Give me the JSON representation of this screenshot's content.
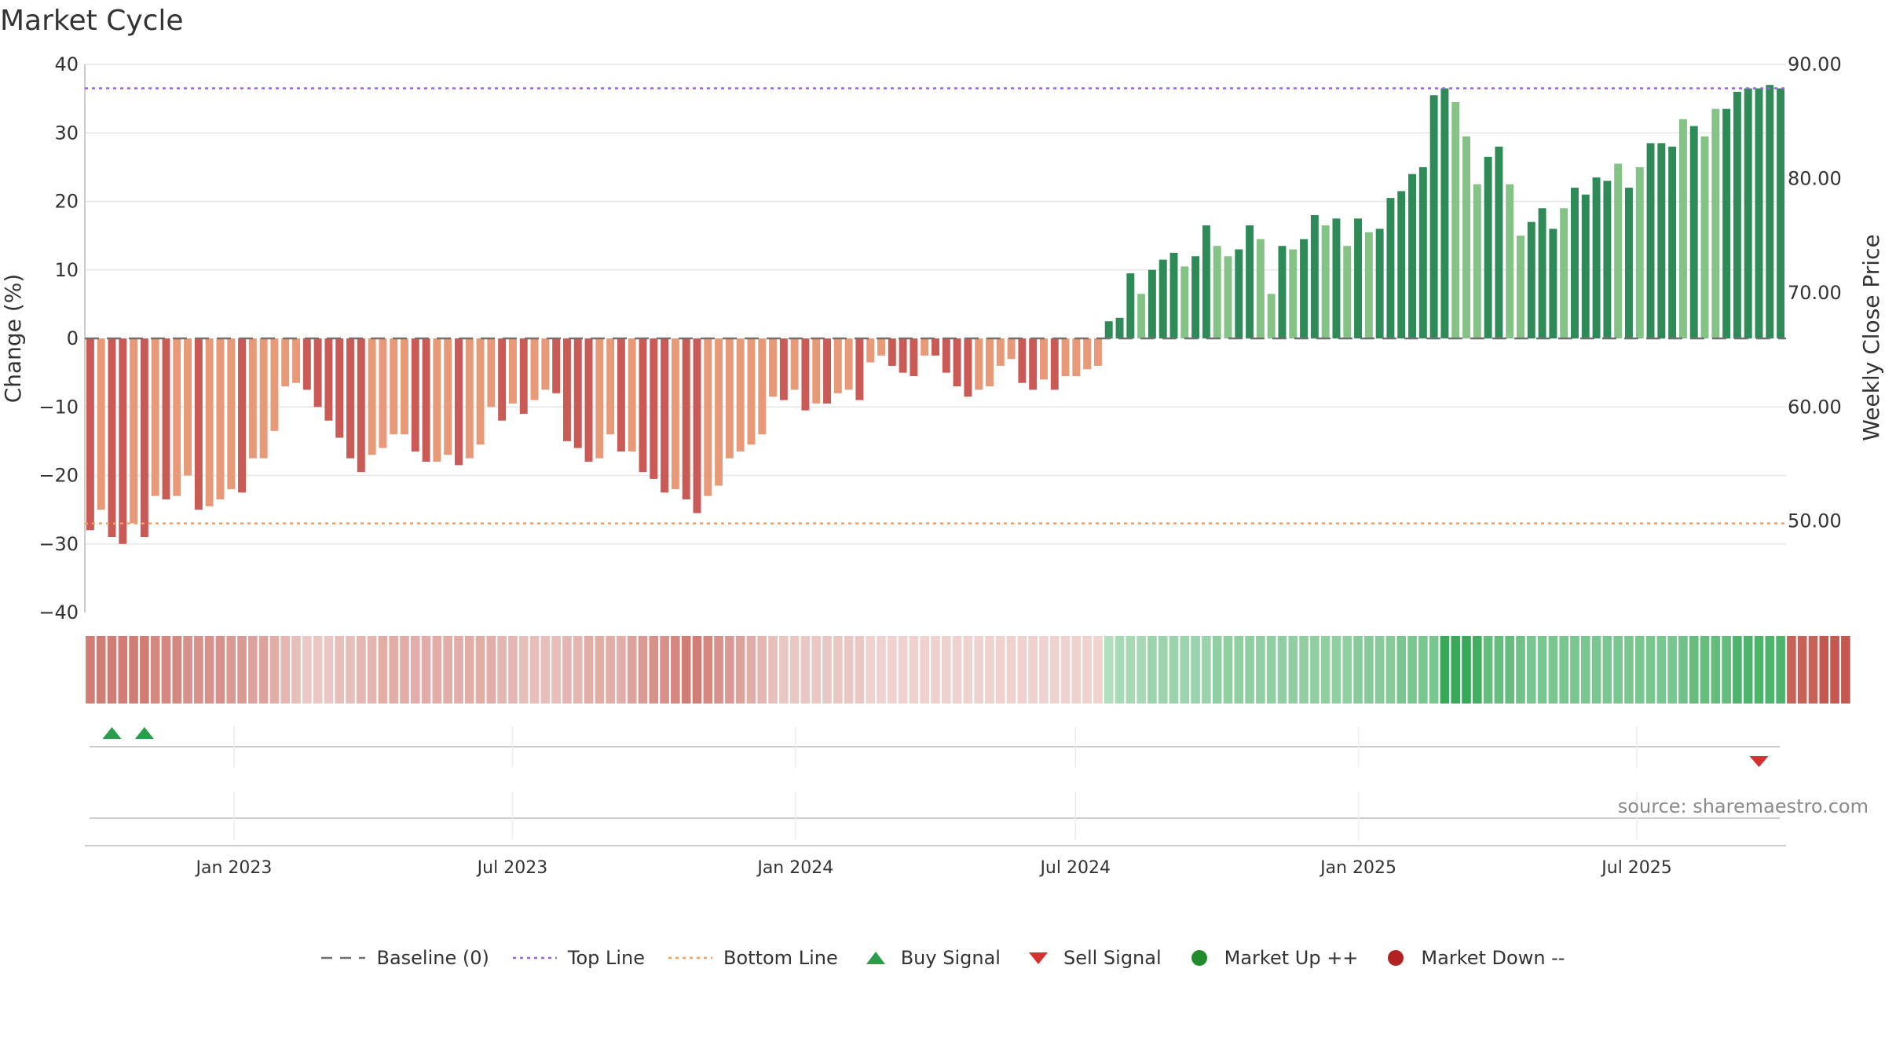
{
  "chart_data": {
    "type": "bar",
    "title": "Market Cycle",
    "ylabel": "Change (%)",
    "y2label": "Weekly Close Price",
    "ylim": [
      -40,
      40
    ],
    "y2lim": [
      42.0,
      90.0
    ],
    "y_ticks": [
      "40",
      "30",
      "20",
      "10",
      "0",
      "−10",
      "−20",
      "−30",
      "−40"
    ],
    "y2_ticks": [
      "90.00",
      "80.00",
      "70.00",
      "60.00",
      "50.00"
    ],
    "x_ticks": [
      {
        "label": "Jan 2023",
        "date": "2023-01-01"
      },
      {
        "label": "Jul 2023",
        "date": "2023-07-01"
      },
      {
        "label": "Jan 2024",
        "date": "2024-01-01"
      },
      {
        "label": "Jul 2024",
        "date": "2024-07-01"
      },
      {
        "label": "Jan 2025",
        "date": "2025-01-01"
      },
      {
        "label": "Jul 2025",
        "date": "2025-07-01"
      }
    ],
    "x_start": "2022-09-26",
    "x_end": "2025-10-06",
    "period": "weekly",
    "top_line": 36.5,
    "bottom_line": -27,
    "values": [
      -28,
      -25,
      -29,
      -30,
      -27,
      -29,
      -23,
      -23.5,
      -23,
      -20,
      -25,
      -24.5,
      -23.5,
      -22,
      -22.5,
      -17.5,
      -17.5,
      -13.5,
      -7,
      -6.5,
      -7.5,
      -10,
      -12,
      -14.5,
      -17.5,
      -19.5,
      -17,
      -16,
      -14,
      -14,
      -16.5,
      -18,
      -18,
      -17,
      -18.5,
      -17.5,
      -15.5,
      -10,
      -12,
      -9.5,
      -11,
      -9,
      -7.5,
      -8,
      -15,
      -16,
      -18,
      -17.5,
      -14,
      -16.5,
      -16.5,
      -19.5,
      -20.5,
      -22.5,
      -22,
      -23.5,
      -25.5,
      -23,
      -21.5,
      -17.5,
      -16.5,
      -15.5,
      -14,
      -8.5,
      -9,
      -7.5,
      -10.5,
      -9.5,
      -9.5,
      -8,
      -7.5,
      -9,
      -3.5,
      -2.5,
      -4,
      -5,
      -5.5,
      -2.5,
      -2.5,
      -5,
      -7,
      -8.5,
      -7.5,
      -7,
      -4,
      -3,
      -6.5,
      -7.5,
      -6,
      -7.5,
      -5.5,
      -5.5,
      -4.5,
      -4,
      2.5,
      3,
      9.5,
      6.5,
      10,
      11.5,
      12.5,
      10.5,
      12,
      16.5,
      13.5,
      12,
      13,
      16.5,
      14.5,
      6.5,
      13.5,
      13,
      14.5,
      18,
      16.5,
      17.5,
      13.5,
      17.5,
      15.5,
      16,
      20.5,
      21.5,
      24,
      25,
      35.5,
      36.5,
      34.5,
      29.5,
      22.5,
      26.5,
      28,
      22.5,
      15,
      17,
      19,
      16,
      19,
      22,
      21,
      23.5,
      23,
      25.5,
      22,
      25,
      28.5,
      28.5,
      28,
      32,
      31,
      29.5,
      33.5,
      33.5,
      36,
      36.5,
      36.5,
      37,
      36.5
    ],
    "shade": [
      1,
      0,
      1,
      1,
      0,
      1,
      0,
      1,
      0,
      0,
      1,
      0,
      0,
      0,
      1,
      0,
      0,
      0,
      0,
      0,
      1,
      1,
      1,
      1,
      1,
      1,
      0,
      0,
      0,
      0,
      1,
      1,
      0,
      0,
      1,
      0,
      0,
      0,
      1,
      0,
      1,
      0,
      0,
      1,
      1,
      1,
      1,
      0,
      0,
      1,
      0,
      1,
      1,
      1,
      0,
      1,
      1,
      0,
      0,
      0,
      0,
      0,
      0,
      0,
      1,
      0,
      1,
      0,
      1,
      0,
      0,
      1,
      0,
      0,
      1,
      1,
      1,
      0,
      1,
      1,
      1,
      1,
      0,
      0,
      0,
      0,
      1,
      1,
      0,
      1,
      0,
      0,
      0,
      0,
      1,
      1,
      1,
      0,
      1,
      1,
      1,
      0,
      1,
      1,
      0,
      0,
      1,
      1,
      0,
      0,
      1,
      0,
      1,
      1,
      0,
      1,
      0,
      1,
      0,
      1,
      1,
      1,
      1,
      1,
      1,
      1,
      0,
      0,
      0,
      1,
      1,
      0,
      0,
      1,
      1,
      1,
      0,
      1,
      1,
      1,
      1,
      0,
      1,
      0,
      1,
      1,
      1,
      0,
      1,
      0,
      0,
      1,
      1,
      1,
      1,
      1,
      1,
      0
    ],
    "heat_strip": [
      0.7,
      0.7,
      0.7,
      0.7,
      0.7,
      0.7,
      0.65,
      0.65,
      0.65,
      0.6,
      0.6,
      0.6,
      0.6,
      0.55,
      0.55,
      0.5,
      0.5,
      0.45,
      0.4,
      0.35,
      0.3,
      0.3,
      0.3,
      0.35,
      0.35,
      0.4,
      0.4,
      0.45,
      0.45,
      0.45,
      0.45,
      0.45,
      0.45,
      0.45,
      0.45,
      0.45,
      0.45,
      0.45,
      0.4,
      0.4,
      0.35,
      0.35,
      0.35,
      0.35,
      0.4,
      0.4,
      0.45,
      0.45,
      0.45,
      0.45,
      0.5,
      0.55,
      0.6,
      0.6,
      0.65,
      0.7,
      0.7,
      0.65,
      0.6,
      0.55,
      0.5,
      0.45,
      0.4,
      0.35,
      0.3,
      0.3,
      0.3,
      0.3,
      0.3,
      0.3,
      0.3,
      0.3,
      0.25,
      0.25,
      0.25,
      0.25,
      0.25,
      0.25,
      0.25,
      0.25,
      0.25,
      0.25,
      0.25,
      0.25,
      0.25,
      0.25,
      0.25,
      0.25,
      0.25,
      0.25,
      0.25,
      0.25,
      0.25,
      0.25,
      0.35,
      0.4,
      0.4,
      0.4,
      0.45,
      0.45,
      0.45,
      0.45,
      0.45,
      0.45,
      0.5,
      0.5,
      0.5,
      0.5,
      0.5,
      0.5,
      0.5,
      0.5,
      0.5,
      0.5,
      0.5,
      0.5,
      0.5,
      0.55,
      0.55,
      0.55,
      0.55,
      0.6,
      0.6,
      0.6,
      0.6,
      0.9,
      0.9,
      0.9,
      0.85,
      0.7,
      0.7,
      0.7,
      0.65,
      0.6,
      0.6,
      0.6,
      0.6,
      0.6,
      0.6,
      0.6,
      0.6,
      0.6,
      0.6,
      0.6,
      0.6,
      0.6,
      0.6,
      0.65,
      0.7,
      0.7,
      0.7,
      0.7,
      0.8,
      0.8,
      0.8,
      0.8,
      0.8,
      0.85,
      0.85,
      0.85,
      0.9,
      0.9,
      0.9
    ],
    "buy_signals": [
      2,
      5
    ],
    "sell_signals": [
      154
    ],
    "source": "source: sharemaestro.com",
    "legend": [
      {
        "label": "Baseline (0)",
        "kind": "dash",
        "color": "#707070"
      },
      {
        "label": "Top Line",
        "kind": "dot",
        "color": "#9966dd"
      },
      {
        "label": "Bottom Line",
        "kind": "dot",
        "color": "#f0a060"
      },
      {
        "label": "Buy Signal",
        "kind": "triangle-up",
        "color": "#2a9d4a"
      },
      {
        "label": "Sell Signal",
        "kind": "triangle-down",
        "color": "#d63030"
      },
      {
        "label": "Market Up ++",
        "kind": "circle",
        "color": "#228b2b"
      },
      {
        "label": "Market Down --",
        "kind": "circle",
        "color": "#b22222"
      }
    ],
    "colors": {
      "neg_dark": "#c95a56",
      "neg_light": "#e89a78",
      "pos_dark": "#2e8b57",
      "pos_light": "#85c285",
      "grid": "#e6e6e6",
      "axis": "#cccccc",
      "baseline": "#707070"
    }
  }
}
